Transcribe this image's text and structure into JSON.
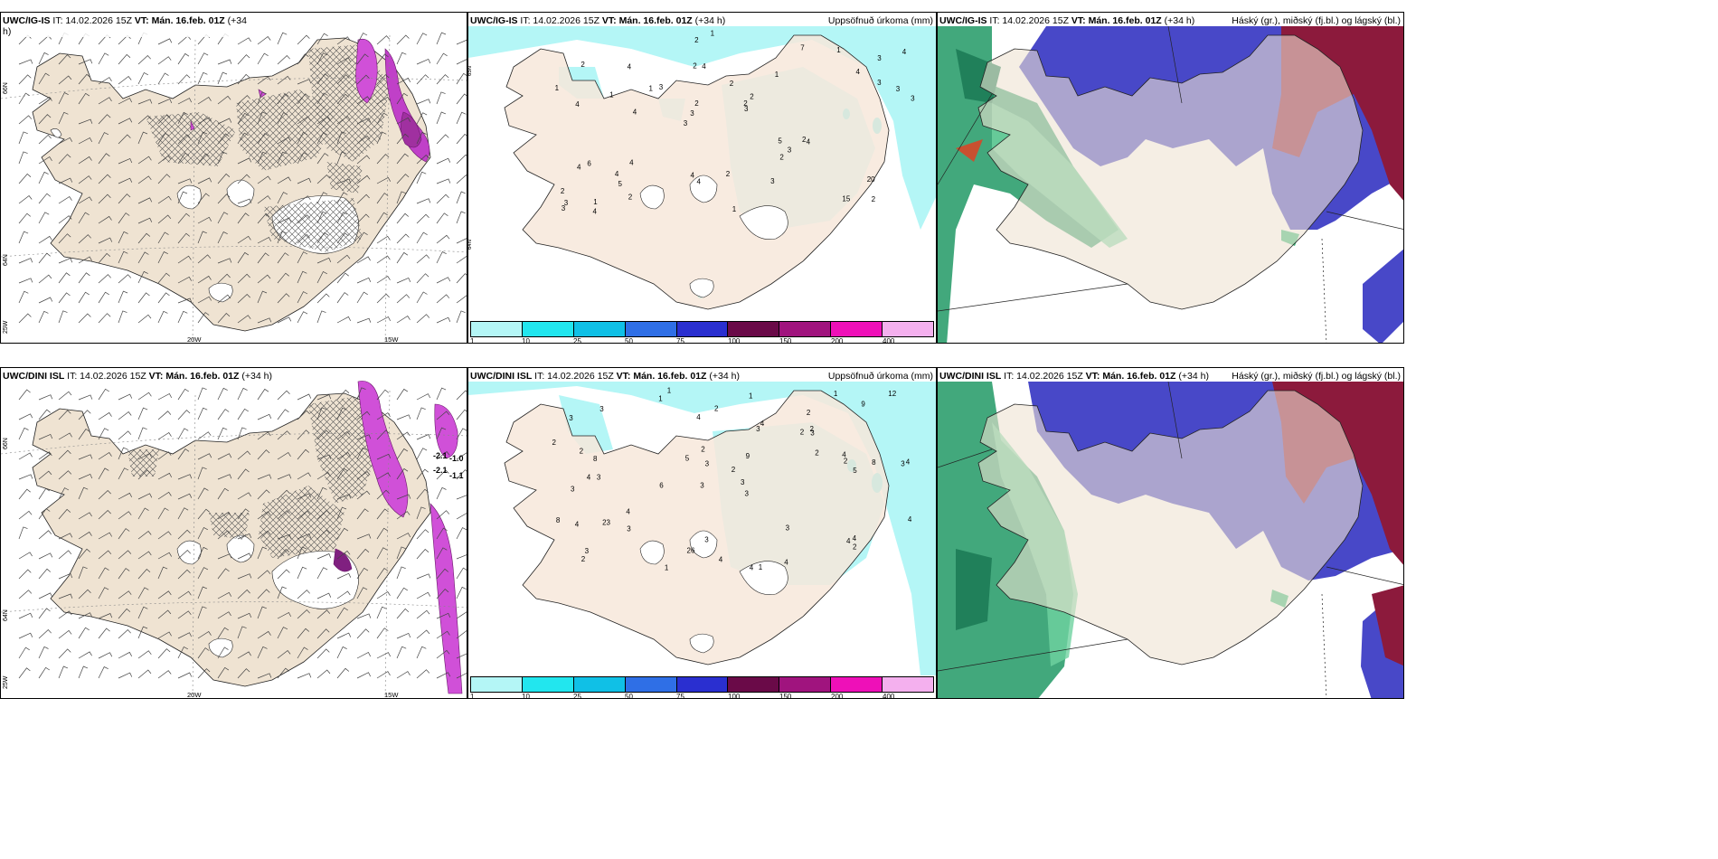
{
  "panels": [
    {
      "id": "top-left",
      "title_model": "UWC/IG-IS",
      "title_it": "IT: 14.02.2026 15Z",
      "title_vt": "VT: Mán. 16.feb. 01Z",
      "title_lead": "(+34",
      "title_cont": "h)",
      "right_label": "",
      "lat_labels": [
        "66N",
        "64N",
        "25W"
      ],
      "lon_labels": [
        "20W",
        "15W"
      ]
    },
    {
      "id": "top-middle",
      "title_model": "UWC/IG-IS",
      "title_it": "IT: 14.02.2026 15Z",
      "title_vt": "VT: Mán. 16.feb. 01Z",
      "title_lead": "(+34 h)",
      "right_label": "Uppsöfnuð úrkoma (mm)",
      "lat_labels": [
        "65N",
        "64N"
      ],
      "numbers": [
        "2",
        "4",
        "3",
        "3",
        "1",
        "1",
        "2",
        "2",
        "6",
        "3",
        "2",
        "5",
        "4",
        "2",
        "4",
        "2",
        "2",
        "3",
        "5",
        "3",
        "3",
        "4",
        "2",
        "4",
        "7",
        "4",
        "15",
        "20",
        "2",
        "1",
        "1",
        "1",
        "2",
        "2",
        "3",
        "2",
        "3",
        "4",
        "3",
        "4",
        "4",
        "4",
        "3",
        "3",
        "4",
        "4",
        "3",
        "2",
        "1",
        "1",
        "4",
        "1"
      ]
    },
    {
      "id": "top-right",
      "title_model": "UWC/IG-IS",
      "title_it": "IT: 14.02.2026 15Z",
      "title_vt": "VT: Mán. 16.feb. 01Z",
      "title_lead": "(+34 h)",
      "right_label": "Háský (gr.), miðský (fj.bl.) og lágský (bl.)"
    },
    {
      "id": "bottom-left",
      "title_model": "UWC/DINI ISL",
      "title_it": "IT: 14.02.2026 15Z",
      "title_vt": "VT: Mán. 16.feb. 01Z",
      "title_lead": "(+34 h)",
      "right_label": "",
      "lat_labels": [
        "66N",
        "64N",
        "25W"
      ],
      "lon_labels": [
        "20W",
        "15W"
      ],
      "temp_labels": [
        "-2.1",
        "-1.0",
        "-2.1",
        "-1.1"
      ]
    },
    {
      "id": "bottom-middle",
      "title_model": "UWC/DINI ISL",
      "title_it": "IT: 14.02.2026 15Z",
      "title_vt": "VT: Mán. 16.feb. 01Z",
      "title_lead": "(+34 h)",
      "right_label": "Uppsöfnuð úrkoma (mm)",
      "numbers": [
        "1",
        "2",
        "3",
        "3",
        "3",
        "3",
        "3",
        "2",
        "3",
        "3",
        "2",
        "2",
        "1",
        "6",
        "4",
        "1",
        "3",
        "1",
        "2",
        "4",
        "8",
        "4",
        "4",
        "8",
        "8",
        "2",
        "3",
        "2",
        "4",
        "4",
        "4",
        "4",
        "23",
        "5",
        "3",
        "4",
        "4",
        "26",
        "12",
        "2",
        "3",
        "1",
        "4",
        "3",
        "4",
        "3",
        "2",
        "2",
        "2",
        "3",
        "4",
        "5",
        "9",
        "9",
        "1",
        "3",
        "2"
      ]
    },
    {
      "id": "bottom-right",
      "title_model": "UWC/DINI ISL",
      "title_it": "IT: 14.02.2026 15Z",
      "title_vt": "VT: Mán. 16.feb. 01Z",
      "title_lead": "(+34 h)",
      "right_label": "Háský (gr.), miðský (fj.bl.) og lágský (bl.)"
    }
  ],
  "colorbar": {
    "colors": [
      "#b4f6f6",
      "#22e6ee",
      "#10c0e6",
      "#2f6fe6",
      "#2a2fd0",
      "#6a0a48",
      "#a0147e",
      "#ee10b8",
      "#f4b0ee"
    ],
    "ticks": [
      "1",
      "10",
      "25",
      "50",
      "75",
      "100",
      "150",
      "200",
      "400"
    ]
  },
  "colors": {
    "land": "#efe3d2",
    "precip_light": "#b4f6f6",
    "precip_mid": "#22e6ee",
    "snow_purple": "#d050d8",
    "high_cloud": "#2d9e6e",
    "mid_cloud": "#4848c8",
    "low_cloud": "#8c1a3c"
  }
}
